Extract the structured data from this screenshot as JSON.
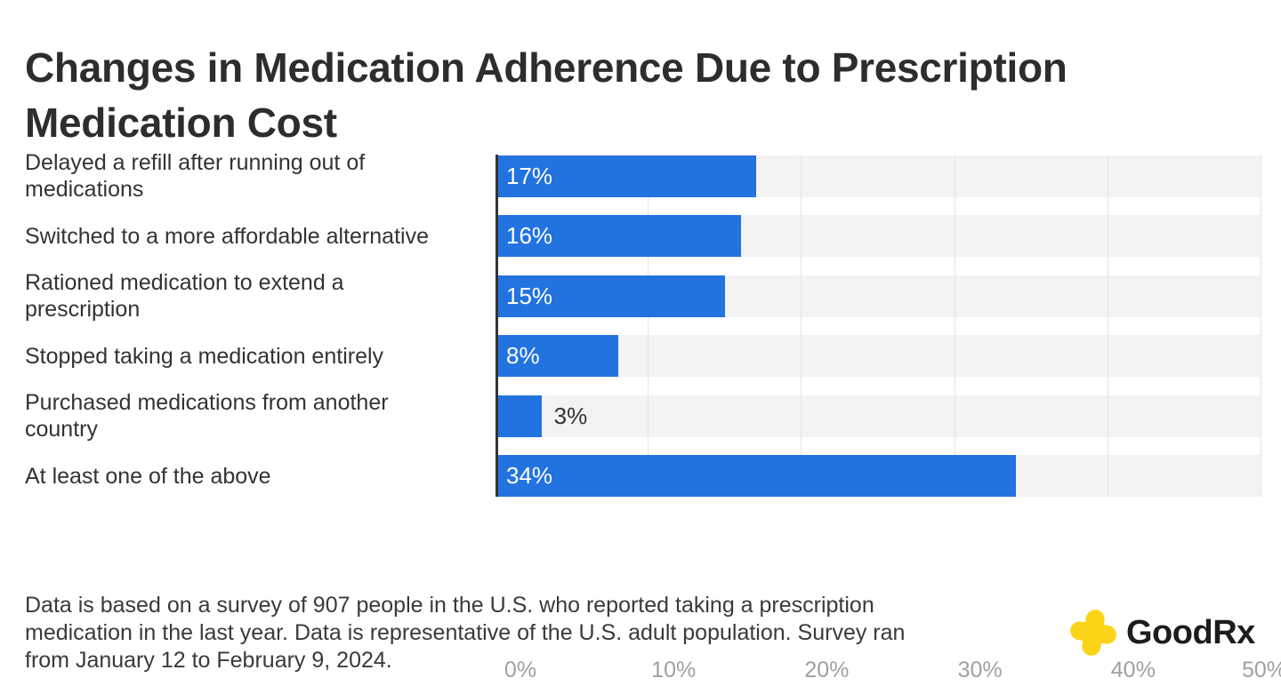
{
  "title": {
    "lines": [
      "Changes in Medication Adherence Due to Prescription",
      "Medication Cost"
    ]
  },
  "chart_data": {
    "type": "bar",
    "orientation": "horizontal",
    "title": "Changes in Medication Adherence Due to Prescription Medication Cost",
    "categories": [
      "Delayed a refill after running out of medications",
      "Switched to a more affordable alternative",
      "Rationed medication to extend a prescription",
      "Stopped taking a medication entirely",
      "Purchased medications from another country",
      "At least one of the above"
    ],
    "category_label_lines": [
      [
        "Delayed a refill after running out of",
        "medications"
      ],
      [
        "Switched to a more affordable alternative"
      ],
      [
        "Rationed medication to extend a",
        "prescription"
      ],
      [
        "Stopped taking a medication entirely"
      ],
      [
        "Purchased medications from another",
        "country"
      ],
      [
        "At least one of the above"
      ]
    ],
    "values": [
      17,
      16,
      15,
      8,
      3,
      34
    ],
    "value_labels": [
      "17%",
      "16%",
      "15%",
      "8%",
      "3%",
      "34%"
    ],
    "xlabel": "",
    "ylabel": "",
    "xlim": [
      0,
      50
    ],
    "x_tick_values": [
      0,
      10,
      20,
      30,
      40,
      50
    ],
    "x_tick_labels": [
      "0%",
      "10%",
      "20%",
      "30%",
      "40%",
      "50%"
    ],
    "grid": true,
    "legend": false,
    "colors": {
      "bar": "#2273e0",
      "track": "#f3f3f3",
      "gridline": "#e4e4e4",
      "axis_line": "#333333",
      "value_label_inside": "#ffffff",
      "value_label_outside": "#333333",
      "tick_label": "#a0a0a0"
    }
  },
  "footer": {
    "lines": [
      "Data is based on a survey of 907 people in the U.S. who reported taking a prescription",
      "medication in the last year. Data is representative of the U.S. adult population. Survey ran",
      "from January 12 to February 9, 2024."
    ]
  },
  "logo": {
    "text": "GoodRx",
    "icon": "goodrx-plus-icon",
    "colors": {
      "plus": "#fbd417",
      "text": "#1e1d1e"
    }
  }
}
